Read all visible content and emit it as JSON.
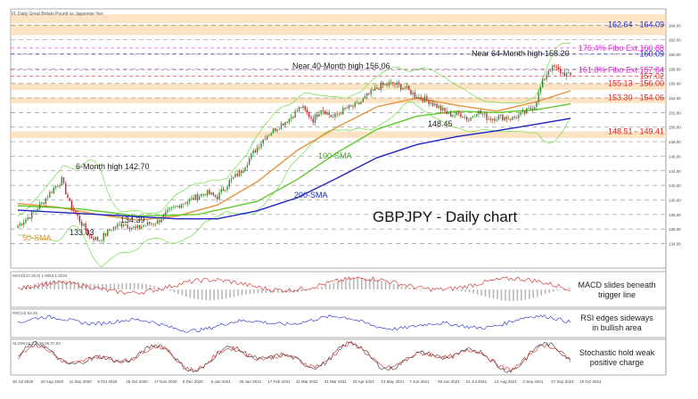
{
  "header": {
    "symbol_line": "FL Daily  Great Britain Pound vs Japanese Yen"
  },
  "chart_title": "GBPJPY - Daily chart",
  "chart_data": {
    "type": "candlestick",
    "title": "GBPJPY - Daily chart",
    "x_ticks": [
      "30 Jul 2020",
      "20 Aug 2020",
      "11 Sep 2020",
      "5 Oct 2020",
      "26 Oct 2020",
      "17 Nov 2020",
      "9 Dec 2020",
      "6 Jan 2021",
      "28 Jan 2021",
      "17 Feb 2021",
      "11 Mar 2021",
      "31 Mar 2021",
      "22 Apr 2021",
      "14 May 2021",
      "7 Jun 2021",
      "29 Jun 2021",
      "21 Jul 2021",
      "12 Aug 2021",
      "3 Sep 2021",
      "27 Sep 2021",
      "19 Oct 2021"
    ],
    "ylim": [
      131,
      166
    ],
    "price_path": [
      [
        0,
        136.5
      ],
      [
        6,
        137.8
      ],
      [
        12,
        139.5
      ],
      [
        18,
        141.6
      ],
      [
        22,
        142.7
      ],
      [
        26,
        139.5
      ],
      [
        31,
        137.2
      ],
      [
        36,
        135.0
      ],
      [
        41,
        134.5
      ],
      [
        47,
        136.1
      ],
      [
        53,
        136.8
      ],
      [
        59,
        136.0
      ],
      [
        64,
        136.6
      ],
      [
        70,
        137.0
      ],
      [
        76,
        138.5
      ],
      [
        82,
        139.5
      ],
      [
        88,
        140.2
      ],
      [
        94,
        141.0
      ],
      [
        100,
        140.4
      ],
      [
        106,
        142.5
      ],
      [
        112,
        144.0
      ],
      [
        118,
        146.5
      ],
      [
        124,
        148.7
      ],
      [
        130,
        150.0
      ],
      [
        136,
        151.2
      ],
      [
        142,
        152.8
      ],
      [
        148,
        151.0
      ],
      [
        152,
        152.6
      ],
      [
        158,
        151.3
      ],
      [
        164,
        152.5
      ],
      [
        170,
        153.0
      ],
      [
        176,
        154.5
      ],
      [
        182,
        155.7
      ],
      [
        188,
        156.0
      ],
      [
        194,
        155.4
      ],
      [
        200,
        154.2
      ],
      [
        206,
        153.6
      ],
      [
        210,
        152.9
      ],
      [
        216,
        151.7
      ],
      [
        222,
        151.8
      ],
      [
        226,
        151.0
      ],
      [
        230,
        152.2
      ],
      [
        236,
        151.2
      ],
      [
        242,
        151.4
      ],
      [
        248,
        151.2
      ],
      [
        254,
        152.0
      ],
      [
        259,
        153.0
      ],
      [
        263,
        156.2
      ],
      [
        266,
        157.9
      ],
      [
        269,
        158.2
      ],
      [
        273,
        157.4
      ],
      [
        277,
        157.0
      ]
    ],
    "series": [
      {
        "name": "50-SMA",
        "color": "#e8913c",
        "values": [
          [
            0,
            139.5
          ],
          [
            20,
            139.0
          ],
          [
            40,
            138.0
          ],
          [
            60,
            137.2
          ],
          [
            80,
            137.8
          ],
          [
            100,
            139.3
          ],
          [
            120,
            142.5
          ],
          [
            140,
            146.8
          ],
          [
            160,
            150.0
          ],
          [
            180,
            152.8
          ],
          [
            200,
            154.0
          ],
          [
            220,
            153.0
          ],
          [
            240,
            152.2
          ],
          [
            260,
            153.5
          ],
          [
            277,
            155.0
          ]
        ]
      },
      {
        "name": "100-SMA",
        "color": "#5fc82a",
        "values": [
          [
            0,
            139.2
          ],
          [
            30,
            138.8
          ],
          [
            60,
            137.8
          ],
          [
            90,
            138.0
          ],
          [
            120,
            139.8
          ],
          [
            140,
            142.8
          ],
          [
            160,
            146.5
          ],
          [
            180,
            149.7
          ],
          [
            200,
            151.5
          ],
          [
            220,
            152.2
          ],
          [
            240,
            152.0
          ],
          [
            260,
            152.4
          ],
          [
            277,
            153.2
          ]
        ]
      },
      {
        "name": "200-SMA",
        "color": "#1e24c8",
        "values": [
          [
            0,
            138.6
          ],
          [
            40,
            138.0
          ],
          [
            80,
            137.4
          ],
          [
            100,
            137.4
          ],
          [
            120,
            138.5
          ],
          [
            140,
            140.3
          ],
          [
            160,
            143.0
          ],
          [
            180,
            145.8
          ],
          [
            200,
            147.6
          ],
          [
            220,
            148.7
          ],
          [
            240,
            149.5
          ],
          [
            260,
            150.4
          ],
          [
            277,
            151.2
          ]
        ]
      }
    ],
    "levels": [
      {
        "label": "162.64 - 164.09",
        "low": 162.64,
        "high": 164.09,
        "color": "#1e24c8"
      },
      {
        "label": "176.4% Fibo Ext.160.88",
        "low": 160.88,
        "color": "#e020d8"
      },
      {
        "label": "160.09",
        "low": 160.09,
        "color": "#1e24c8"
      },
      {
        "label": "161.8% Fibo Ext.157.84",
        "low": 157.84,
        "color": "#e020d8"
      },
      {
        "label": "157.02",
        "low": 157.02,
        "color": "#e02020"
      },
      {
        "label": "155.13 - 156.00",
        "low": 155.13,
        "high": 156.0,
        "color": "#e02020"
      },
      {
        "label": "153.30 - 154.06",
        "low": 153.3,
        "high": 154.06,
        "color": "#e02020"
      },
      {
        "label": "148.51 - 149.41",
        "low": 148.51,
        "high": 149.41,
        "color": "#e02020"
      }
    ],
    "annotations": [
      {
        "text": "Near 64-Month high 158.20",
        "value": 158.2
      },
      {
        "text": "Near 40-Month high 156.06",
        "value": 156.06
      },
      {
        "text": "148.45",
        "value": 148.45
      },
      {
        "text": "6-Month high 142.70",
        "value": 142.7
      },
      {
        "text": "134.39",
        "value": 134.39
      },
      {
        "text": "133.03",
        "value": 133.03
      }
    ],
    "sma_labels": {
      "sma50": "50-SMA",
      "sma100": "100-SMA",
      "sma200": "200-SMA"
    },
    "indicators": [
      {
        "name": "MACD",
        "header": "MACD(12,26,9) 1.9653 1.8234",
        "note_line1": "MACD slides beneath",
        "note_line2": "trigger line"
      },
      {
        "name": "RSI",
        "header": "RSI(14) 62.45",
        "note_line1": "RSI edges sideways",
        "note_line2": "in bullish area"
      },
      {
        "name": "Stochastic",
        "header": "SLOW(14,3,3) 56.46 37.54",
        "note_line1": "Stochastic hold weak",
        "note_line2": "positive charge"
      }
    ]
  }
}
